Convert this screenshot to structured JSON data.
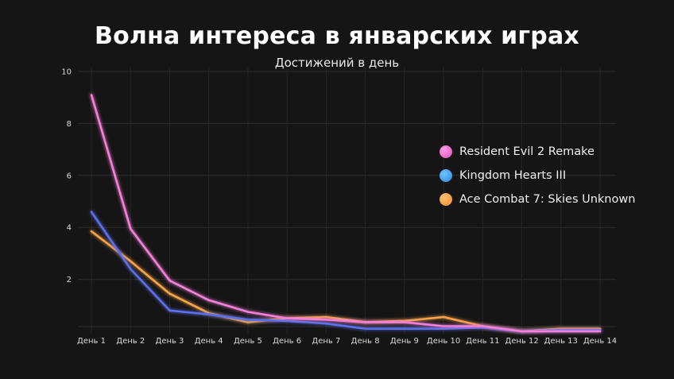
{
  "chart_data": {
    "type": "line",
    "title": "Волна интереса в январских играх",
    "subtitle": "Достижений в день",
    "categories": [
      "День 1",
      "День 2",
      "День 3",
      "День 4",
      "День 5",
      "День 6",
      "День 7",
      "День 8",
      "День 9",
      "День 10",
      "День 11",
      "День 12",
      "День 13",
      "День 14"
    ],
    "yticks": [
      2,
      4,
      6,
      8,
      10
    ],
    "ylim": [
      0,
      10
    ],
    "grid": true,
    "legend_position": "right",
    "series": [
      {
        "name": "Resident Evil 2 Remake",
        "color": "#f27fd8",
        "values": [
          9.1,
          3.95,
          1.95,
          1.2,
          0.75,
          0.5,
          0.45,
          0.35,
          0.35,
          0.2,
          0.2,
          0.0,
          0.0,
          0.0
        ]
      },
      {
        "name": "Kingdom Hearts III",
        "color": "#5b6ee8",
        "values": [
          4.6,
          2.4,
          0.8,
          0.65,
          0.45,
          0.4,
          0.3,
          0.1,
          0.1,
          0.1,
          0.15,
          0.0,
          0.05,
          0.05
        ]
      },
      {
        "name": "Ace Combat 7: Skies Unknown",
        "color": "#f5a24a",
        "values": [
          3.85,
          2.7,
          1.45,
          0.7,
          0.35,
          0.5,
          0.55,
          0.35,
          0.4,
          0.55,
          0.2,
          0.0,
          0.1,
          0.1
        ]
      }
    ]
  }
}
